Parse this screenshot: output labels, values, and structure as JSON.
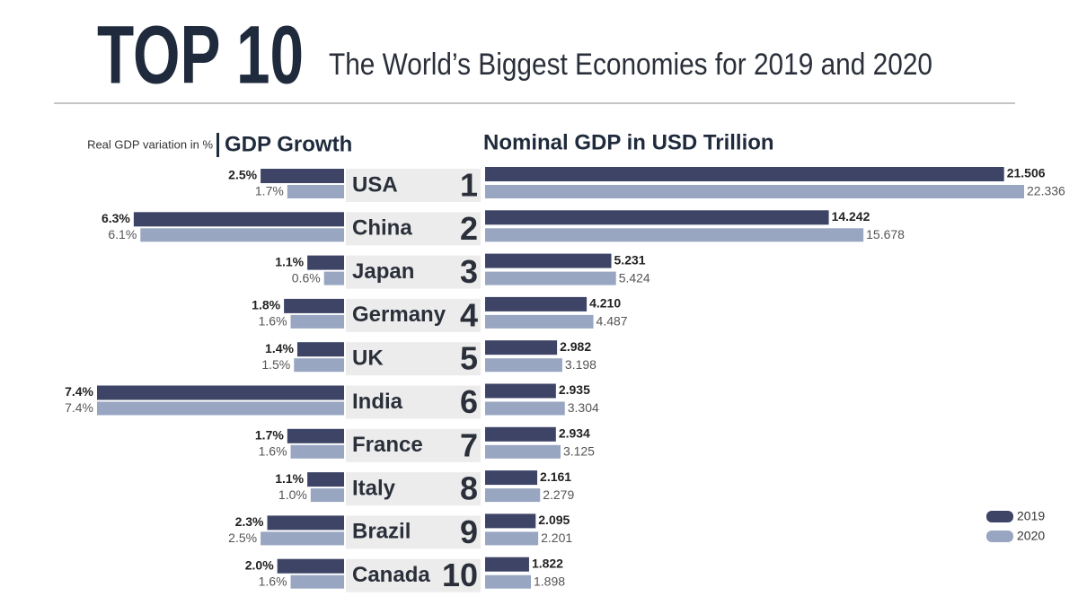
{
  "title": "TOP 10",
  "subtitle": "The World’s Biggest Economies for 2019 and 2020",
  "chart_data": [
    {
      "type": "hbar-left",
      "title": "GDP Growth",
      "axis_label": "Real GDP variation in %",
      "categories": [
        "USA",
        "China",
        "Japan",
        "Germany",
        "UK",
        "India",
        "France",
        "Italy",
        "Brazil",
        "Canada"
      ],
      "xlim": [
        0,
        7.4
      ],
      "series": [
        {
          "color": "#3d4466",
          "values": [
            2.5,
            6.3,
            1.1,
            1.8,
            1.4,
            7.4,
            1.7,
            1.1,
            2.3,
            2.0
          ],
          "value_labels": [
            "2.5%",
            "6.3%",
            "1.1%",
            "1.8%",
            "1.4%",
            "7.4%",
            "1.7%",
            "1.1%",
            "2.3%",
            "2.0%"
          ]
        },
        {
          "color": "#98a6c2",
          "values": [
            1.7,
            6.1,
            0.6,
            1.6,
            1.5,
            7.4,
            1.6,
            1.0,
            2.5,
            1.6
          ],
          "value_labels": [
            "1.7%",
            "6.1%",
            "0.6%",
            "1.6%",
            "1.5%",
            "7.4%",
            "1.6%",
            "1.0%",
            "2.5%",
            "1.6%"
          ]
        }
      ]
    },
    {
      "type": "hbar-right",
      "title": "Nominal GDP in USD Trillion",
      "categories": [
        "1",
        "2",
        "3",
        "4",
        "5",
        "6",
        "7",
        "8",
        "9",
        "10"
      ],
      "xlim": [
        0,
        22.336
      ],
      "legend": "bottom-right",
      "series": [
        {
          "name": "2019",
          "color": "#3d4466",
          "values": [
            21.506,
            14.242,
            5.231,
            4.21,
            2.982,
            2.935,
            2.934,
            2.161,
            2.095,
            1.822
          ],
          "value_labels": [
            "21.506",
            "14.242",
            "5.231",
            "4.210",
            "2.982",
            "2.935",
            "2.934",
            "2.161",
            "2.095",
            "1.822"
          ]
        },
        {
          "name": "2020",
          "color": "#98a6c2",
          "values": [
            22.336,
            15.678,
            5.424,
            4.487,
            3.198,
            3.304,
            3.125,
            2.279,
            2.201,
            1.898
          ],
          "value_labels": [
            "22.336",
            "15.678",
            "5.424",
            "4.487",
            "3.198",
            "3.304",
            "3.125",
            "2.279",
            "2.201",
            "1.898"
          ]
        }
      ]
    }
  ]
}
